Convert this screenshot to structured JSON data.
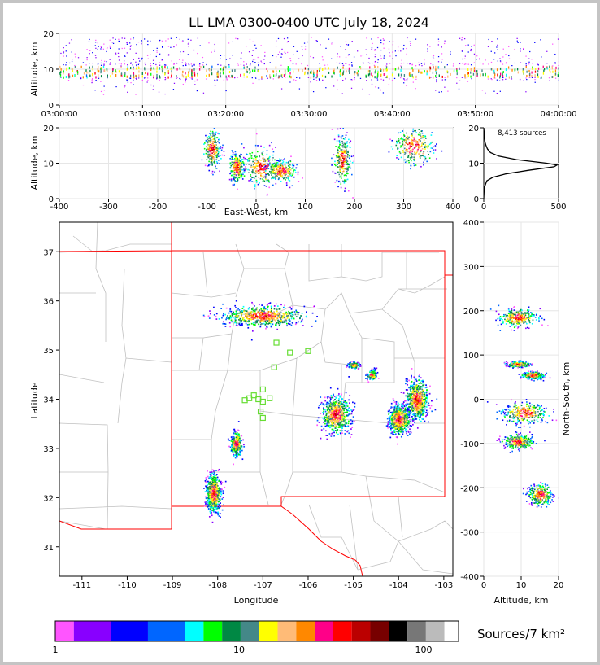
{
  "title": "LL LMA 0300-0400 UTC July 18, 2024",
  "colors": {
    "scale": [
      "#ff55ff",
      "#8800ff",
      "#0000ff",
      "#0066ff",
      "#00ffff",
      "#00ff00",
      "#008844",
      "#448888",
      "#ffff00",
      "#ffbb77",
      "#ff8800",
      "#ff0088",
      "#ff0000",
      "#bb0000",
      "#770000",
      "#000000",
      "#777777",
      "#bbbbbb",
      "#ffffff"
    ],
    "border": "#ff0000",
    "counties": "#c0c0c0",
    "stations": "#66dd33",
    "grid": "#e6e6e6"
  },
  "chart_data": [
    {
      "type": "scatter",
      "name": "time-altitude",
      "ylabel": "Altitude, km",
      "xlabel": "",
      "x_ticks": [
        "03:00:00",
        "03:10:00",
        "03:20:00",
        "03:30:00",
        "03:40:00",
        "03:50:00",
        "04:00:00"
      ],
      "xlim_minutes": [
        0,
        60
      ],
      "ylim": [
        0,
        20
      ],
      "y_ticks": [
        0,
        10,
        20
      ],
      "band_core_km": [
        7,
        12
      ],
      "band_top_km": 19
    },
    {
      "type": "scatter",
      "name": "east-west-altitude",
      "xlabel": "East-West, km",
      "ylabel": "Altitude, km",
      "xlim": [
        -400,
        400
      ],
      "x_ticks": [
        -400,
        -300,
        -200,
        -100,
        0,
        100,
        200,
        300,
        400
      ],
      "ylim": [
        0,
        20
      ],
      "y_ticks": [
        0,
        10,
        20
      ],
      "clusters": [
        {
          "x": -90,
          "z": 14,
          "sx": 8,
          "sz": 2.5
        },
        {
          "x": -40,
          "z": 9,
          "sx": 7,
          "sz": 2
        },
        {
          "x": 10,
          "z": 9,
          "sx": 18,
          "sz": 2.5
        },
        {
          "x": 50,
          "z": 8,
          "sx": 15,
          "sz": 1.5
        },
        {
          "x": 175,
          "z": 11,
          "sx": 8,
          "sz": 3.5
        },
        {
          "x": 320,
          "z": 15,
          "sx": 20,
          "sz": 2.5
        }
      ]
    },
    {
      "type": "line",
      "name": "altitude-histogram",
      "annotation": "8,413 sources",
      "xlim": [
        0,
        500
      ],
      "x_ticks": [
        0,
        500
      ],
      "ylim": [
        0,
        20
      ],
      "y_ticks": [
        0,
        10,
        20
      ],
      "profile": [
        {
          "z": 0,
          "count": 0
        },
        {
          "z": 3,
          "count": 3
        },
        {
          "z": 5,
          "count": 20
        },
        {
          "z": 6,
          "count": 60
        },
        {
          "z": 7,
          "count": 150
        },
        {
          "z": 8,
          "count": 300
        },
        {
          "z": 9,
          "count": 470
        },
        {
          "z": 9.5,
          "count": 490
        },
        {
          "z": 10,
          "count": 420
        },
        {
          "z": 11,
          "count": 220
        },
        {
          "z": 12,
          "count": 100
        },
        {
          "z": 13,
          "count": 45
        },
        {
          "z": 14,
          "count": 25
        },
        {
          "z": 15,
          "count": 15
        },
        {
          "z": 16,
          "count": 8
        },
        {
          "z": 18,
          "count": 4
        },
        {
          "z": 20,
          "count": 0
        }
      ]
    },
    {
      "type": "scatter",
      "name": "plan-view",
      "xlabel": "Longitude",
      "ylabel": "Latitude",
      "xlim": [
        -111.5,
        -102.8
      ],
      "x_ticks": [
        -111,
        -110,
        -109,
        -108,
        -107,
        -106,
        -105,
        -104,
        -103
      ],
      "ylim": [
        30.4,
        37.6
      ],
      "y_ticks": [
        31,
        32,
        33,
        34,
        35,
        36,
        37
      ],
      "clusters": [
        {
          "lon": -107.0,
          "lat": 35.7,
          "slon": 0.45,
          "slat": 0.1
        },
        {
          "lon": -107.6,
          "lat": 33.1,
          "slon": 0.06,
          "slat": 0.12
        },
        {
          "lon": -108.1,
          "lat": 32.1,
          "slon": 0.08,
          "slat": 0.2
        },
        {
          "lon": -105.4,
          "lat": 33.7,
          "slon": 0.15,
          "slat": 0.18
        },
        {
          "lon": -104.0,
          "lat": 33.6,
          "slon": 0.12,
          "slat": 0.15
        },
        {
          "lon": -104.6,
          "lat": 34.5,
          "slon": 0.05,
          "slat": 0.05
        },
        {
          "lon": -103.6,
          "lat": 34.0,
          "slon": 0.12,
          "slat": 0.2
        },
        {
          "lon": -105.0,
          "lat": 34.7,
          "slon": 0.06,
          "slat": 0.03
        }
      ],
      "stations": [
        {
          "lon": -106.7,
          "lat": 35.15
        },
        {
          "lon": -106.4,
          "lat": 34.95
        },
        {
          "lon": -106.0,
          "lat": 34.98
        },
        {
          "lon": -106.75,
          "lat": 34.65
        },
        {
          "lon": -107.0,
          "lat": 34.2
        },
        {
          "lon": -107.2,
          "lat": 34.08
        },
        {
          "lon": -107.3,
          "lat": 34.02
        },
        {
          "lon": -107.1,
          "lat": 34.0
        },
        {
          "lon": -107.4,
          "lat": 33.98
        },
        {
          "lon": -106.85,
          "lat": 34.02
        },
        {
          "lon": -107.0,
          "lat": 33.95
        },
        {
          "lon": -107.05,
          "lat": 33.75
        },
        {
          "lon": -107.0,
          "lat": 33.62
        }
      ]
    },
    {
      "type": "scatter",
      "name": "altitude-north-south",
      "xlabel": "Altitude, km",
      "ylabel": "North-South, km",
      "xlim": [
        0,
        20
      ],
      "x_ticks": [
        0,
        10,
        20
      ],
      "ylim": [
        -400,
        400
      ],
      "y_ticks": [
        -400,
        -300,
        -200,
        -100,
        0,
        100,
        200,
        300,
        400
      ],
      "clusters": [
        {
          "z": 9,
          "y": 185,
          "sz": 2.5,
          "sy": 10
        },
        {
          "z": 9,
          "y": 80,
          "sz": 1.5,
          "sy": 3
        },
        {
          "z": 13,
          "y": 55,
          "sz": 1.5,
          "sy": 4
        },
        {
          "z": 11,
          "y": -30,
          "sz": 3,
          "sy": 12
        },
        {
          "z": 9,
          "y": -95,
          "sz": 2,
          "sy": 8
        },
        {
          "z": 15,
          "y": -215,
          "sz": 1.5,
          "sy": 12
        }
      ]
    }
  ],
  "colorbar": {
    "label": "Sources/7 km²",
    "ticks": [
      "1",
      "10",
      "100"
    ]
  }
}
